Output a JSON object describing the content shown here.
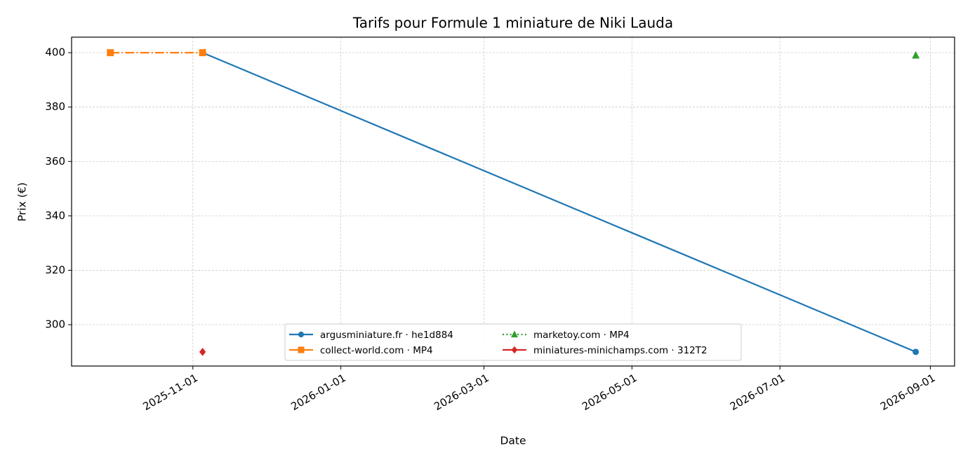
{
  "chart_data": {
    "type": "line",
    "title": "Tarifs pour Formule 1 miniature de Niki Lauda",
    "x_label": "Date",
    "y_label": "Prix (€)",
    "xlim": [
      "2025-09-12",
      "2026-09-11"
    ],
    "xticks": [
      "2025-11-01",
      "2026-01-01",
      "2026-03-01",
      "2026-05-01",
      "2026-07-01",
      "2026-09-01"
    ],
    "ylim": [
      284.8,
      405.7
    ],
    "yticks": [
      300,
      320,
      340,
      360,
      380,
      400
    ],
    "grid": true,
    "legend_loc": "lower center",
    "legend_columns": 2,
    "series": [
      {
        "name": "argusminiature.fr · he1d884",
        "color": "#1f77b4",
        "linestyle": "solid",
        "marker": "circle",
        "x": [
          "2025-11-05",
          "2026-08-26"
        ],
        "values": [
          400,
          290
        ]
      },
      {
        "name": "collect-world.com · MP4",
        "color": "#ff7f0e",
        "linestyle": "dashdot",
        "marker": "square",
        "x": [
          "2025-09-28",
          "2025-11-05"
        ],
        "values": [
          400,
          400
        ]
      },
      {
        "name": "marketoy.com · MP4",
        "color": "#2ca02c",
        "linestyle": "dotted",
        "marker": "triangle",
        "x": [
          "2026-08-26"
        ],
        "values": [
          399
        ]
      },
      {
        "name": "miniatures-minichamps.com · 312T2",
        "color": "#d62728",
        "linestyle": "solid",
        "marker": "diamond",
        "x": [
          "2025-11-05"
        ],
        "values": [
          290
        ]
      }
    ]
  }
}
